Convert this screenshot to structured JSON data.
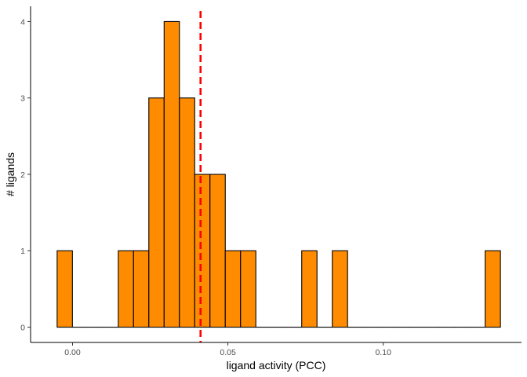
{
  "chart_data": {
    "type": "bar",
    "subtype": "histogram",
    "xlabel": "ligand activity (PCC)",
    "ylabel": "# ligands",
    "xlim": [
      -0.0135,
      0.1445
    ],
    "ylim": [
      -0.2,
      4.2
    ],
    "x_ticks": [
      0.0,
      0.05,
      0.1
    ],
    "x_tick_labels": [
      "0.00",
      "0.05",
      "0.10"
    ],
    "y_ticks": [
      0,
      1,
      2,
      3,
      4
    ],
    "y_tick_labels": [
      "0",
      "1",
      "2",
      "3",
      "4"
    ],
    "bin_width": 0.00492,
    "bins": [
      {
        "center": -0.0025,
        "count": 1
      },
      {
        "center": 0.00242,
        "count": 0
      },
      {
        "center": 0.00734,
        "count": 0
      },
      {
        "center": 0.01226,
        "count": 0
      },
      {
        "center": 0.01718,
        "count": 1
      },
      {
        "center": 0.0221,
        "count": 1
      },
      {
        "center": 0.02702,
        "count": 3
      },
      {
        "center": 0.03194,
        "count": 4
      },
      {
        "center": 0.03686,
        "count": 3
      },
      {
        "center": 0.04178,
        "count": 2
      },
      {
        "center": 0.0467,
        "count": 2
      },
      {
        "center": 0.05162,
        "count": 1
      },
      {
        "center": 0.05654,
        "count": 1
      },
      {
        "center": 0.06146,
        "count": 0
      },
      {
        "center": 0.06638,
        "count": 0
      },
      {
        "center": 0.0713,
        "count": 0
      },
      {
        "center": 0.07622,
        "count": 1
      },
      {
        "center": 0.08114,
        "count": 0
      },
      {
        "center": 0.08606,
        "count": 1
      },
      {
        "center": 0.09098,
        "count": 0
      },
      {
        "center": 0.0959,
        "count": 0
      },
      {
        "center": 0.10082,
        "count": 0
      },
      {
        "center": 0.10574,
        "count": 0
      },
      {
        "center": 0.11066,
        "count": 0
      },
      {
        "center": 0.11558,
        "count": 0
      },
      {
        "center": 0.1205,
        "count": 0
      },
      {
        "center": 0.12542,
        "count": 0
      },
      {
        "center": 0.13034,
        "count": 0
      },
      {
        "center": 0.13526,
        "count": 1
      }
    ],
    "reference_line": {
      "x": 0.0412,
      "style": "dashed",
      "color": "#ff0000"
    },
    "bar_fill": "#ff8c00",
    "bar_stroke": "#000000",
    "grid": false,
    "legend": "none"
  }
}
